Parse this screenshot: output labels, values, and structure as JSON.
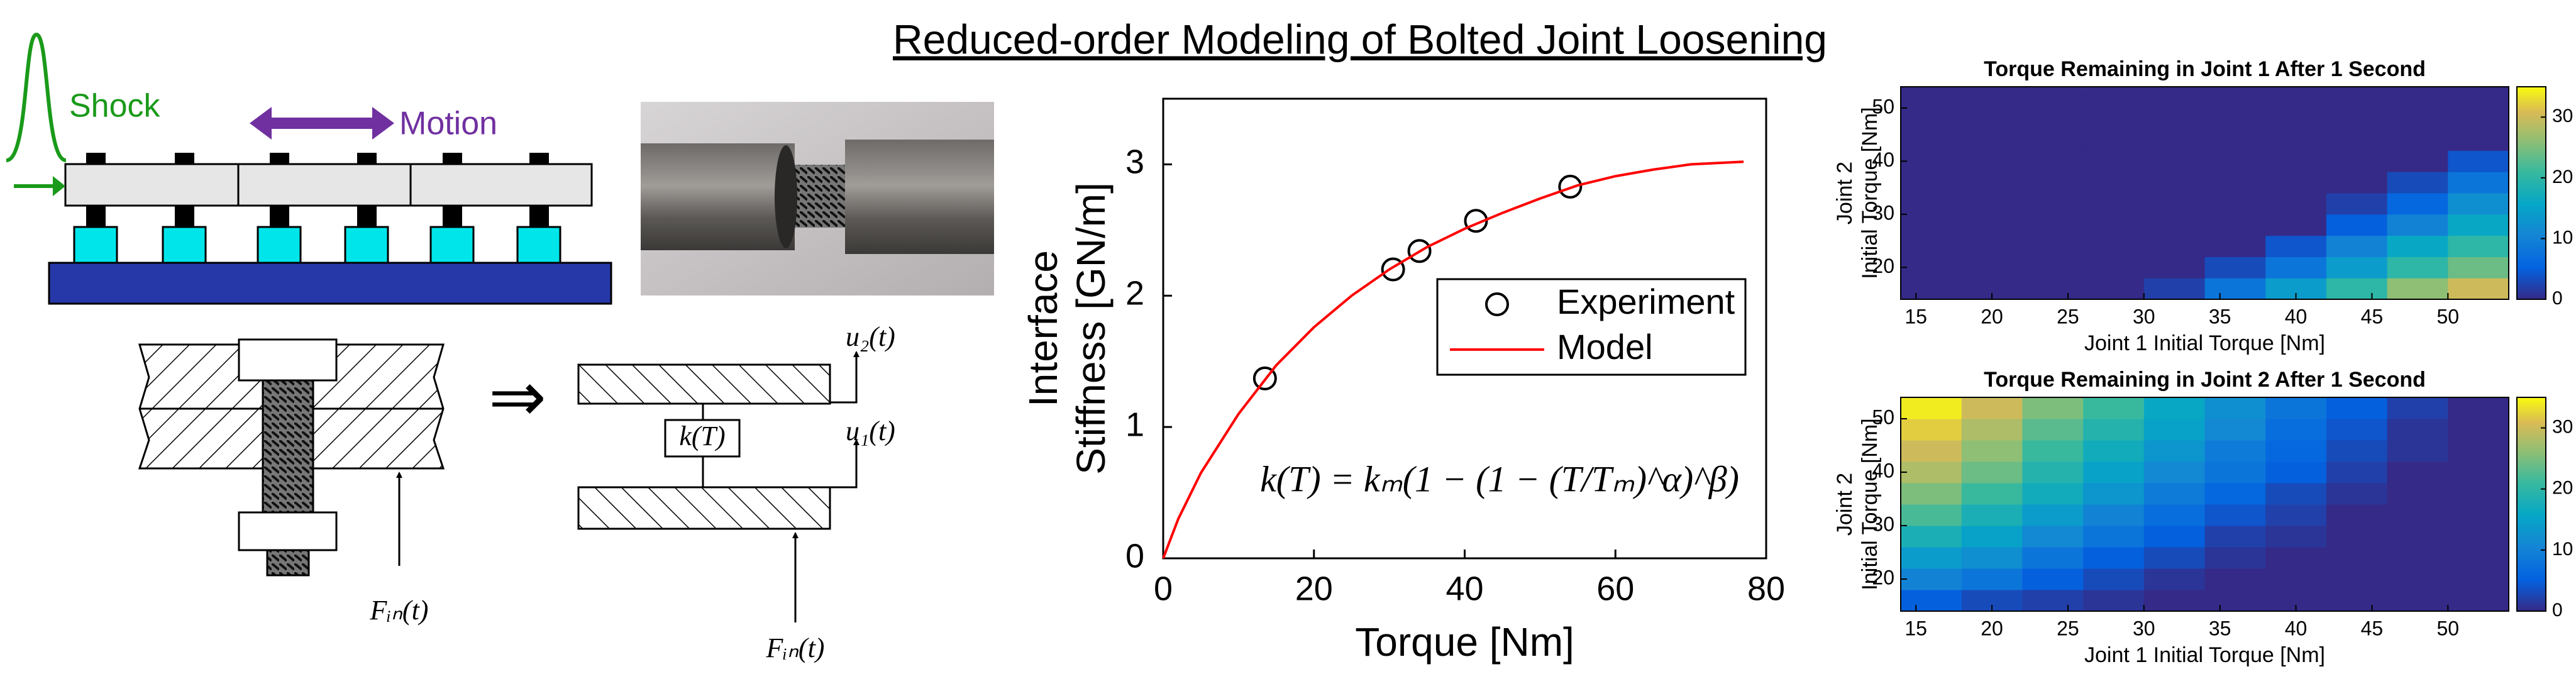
{
  "title": "Reduced-order Modeling of Bolted Joint Loosening",
  "diagram": {
    "shock": "Shock",
    "motion": "Motion",
    "stiffness": "k(T)",
    "u2": "u₂(t)",
    "u1": "u₁(t)",
    "force_left": "Fᵢₙ(t)",
    "force_right": "Fᵢₙ(t)"
  },
  "chart_data": [
    {
      "type": "line",
      "xlabel": "Torque [Nm]",
      "ylabel": [
        "Interface",
        "Stiffness [GN/m]"
      ],
      "annotation": "k(T) = kₘ(1 − (1 − (T/Tₘ)^α)^β)",
      "xlim": [
        0,
        80
      ],
      "ylim": [
        0,
        3.5
      ],
      "xticks": [
        0,
        20,
        40,
        60,
        80
      ],
      "yticks": [
        0,
        1,
        2,
        3
      ],
      "legend": "right",
      "series": [
        {
          "name": "Experiment",
          "color": "#000000",
          "marker": "circle",
          "x": [
            13.5,
            30.5,
            34,
            41.5,
            54
          ],
          "values": [
            1.37,
            2.2,
            2.34,
            2.57,
            2.83
          ]
        },
        {
          "name": "Model",
          "color": "#ff0000",
          "x": [
            0,
            2,
            5,
            10,
            15,
            20,
            25,
            30,
            35,
            40,
            45,
            50,
            55,
            60,
            65,
            70,
            77
          ],
          "values": [
            0,
            0.3,
            0.65,
            1.1,
            1.47,
            1.76,
            2.0,
            2.2,
            2.37,
            2.51,
            2.63,
            2.74,
            2.84,
            2.91,
            2.96,
            3.0,
            3.02
          ]
        }
      ]
    },
    {
      "type": "heatmap",
      "title": "Torque Remaining in Joint 1 After 1 Second",
      "xlabel": "Joint 1 Initial Torque [Nm]",
      "ylabel": [
        "Joint 2",
        "Initial Torque [Nm]"
      ],
      "colormap": "parula",
      "xlim": [
        14,
        54
      ],
      "ylim": [
        14,
        54
      ],
      "zlim": [
        0,
        35
      ],
      "xticks": [
        15,
        20,
        25,
        30,
        35,
        40,
        45,
        50
      ],
      "yticks": [
        20,
        30,
        40,
        50
      ],
      "cticks": [
        0,
        10,
        20,
        30
      ],
      "x": [
        16,
        20,
        24,
        28,
        32,
        36,
        40,
        44,
        48,
        52
      ],
      "y": [
        16,
        20,
        24,
        28,
        32,
        36,
        40,
        44,
        48,
        52
      ],
      "z": [
        [
          0,
          0,
          0,
          0,
          2,
          8,
          14,
          20,
          26,
          30
        ],
        [
          0,
          0,
          0,
          0,
          0,
          3,
          8,
          14,
          20,
          24
        ],
        [
          0,
          0,
          0,
          0,
          0,
          0,
          4,
          10,
          16,
          20
        ],
        [
          0,
          0,
          0,
          0,
          0,
          0,
          0,
          5,
          10,
          16
        ],
        [
          0,
          0,
          0,
          0,
          0,
          0,
          0,
          2,
          6,
          12
        ],
        [
          0,
          0,
          0,
          0,
          0,
          0,
          0,
          0,
          3,
          8
        ],
        [
          0,
          0,
          0,
          0,
          0,
          0,
          0,
          0,
          0,
          4
        ],
        [
          0,
          0,
          0,
          0,
          0,
          0,
          0,
          0,
          0,
          0
        ],
        [
          0,
          0,
          0,
          0,
          0,
          0,
          0,
          0,
          0,
          0
        ],
        [
          0,
          0,
          0,
          0,
          0,
          0,
          0,
          0,
          0,
          0
        ]
      ]
    },
    {
      "type": "heatmap",
      "title": "Torque Remaining in Joint 2 After 1 Second",
      "xlabel": "Joint 1 Initial Torque [Nm]",
      "ylabel": [
        "Joint 2",
        "Initial Torque [Nm]"
      ],
      "colormap": "parula",
      "xlim": [
        14,
        54
      ],
      "ylim": [
        14,
        54
      ],
      "zlim": [
        0,
        35
      ],
      "xticks": [
        15,
        20,
        25,
        30,
        35,
        40,
        45,
        50
      ],
      "yticks": [
        20,
        30,
        40,
        50
      ],
      "cticks": [
        0,
        10,
        20,
        30
      ],
      "x": [
        16,
        20,
        24,
        28,
        32,
        36,
        40,
        44,
        48,
        52
      ],
      "y": [
        16,
        20,
        24,
        28,
        32,
        36,
        40,
        44,
        48,
        52
      ],
      "z": [
        [
          5,
          3,
          2,
          1,
          0,
          0,
          0,
          0,
          0,
          0
        ],
        [
          10,
          8,
          5,
          3,
          1,
          0,
          0,
          0,
          0,
          0
        ],
        [
          14,
          12,
          8,
          5,
          3,
          1,
          0,
          0,
          0,
          0
        ],
        [
          18,
          15,
          11,
          8,
          5,
          2,
          1,
          0,
          0,
          0
        ],
        [
          22,
          18,
          14,
          10,
          7,
          4,
          2,
          0,
          0,
          0
        ],
        [
          25,
          21,
          17,
          13,
          9,
          6,
          3,
          1,
          0,
          0
        ],
        [
          28,
          24,
          19,
          15,
          11,
          8,
          5,
          2,
          0,
          0
        ],
        [
          30,
          26,
          21,
          17,
          13,
          9,
          6,
          3,
          1,
          0
        ],
        [
          32,
          28,
          23,
          19,
          15,
          11,
          7,
          4,
          1,
          0
        ],
        [
          34,
          30,
          25,
          21,
          16,
          12,
          8,
          5,
          2,
          0
        ]
      ]
    }
  ]
}
